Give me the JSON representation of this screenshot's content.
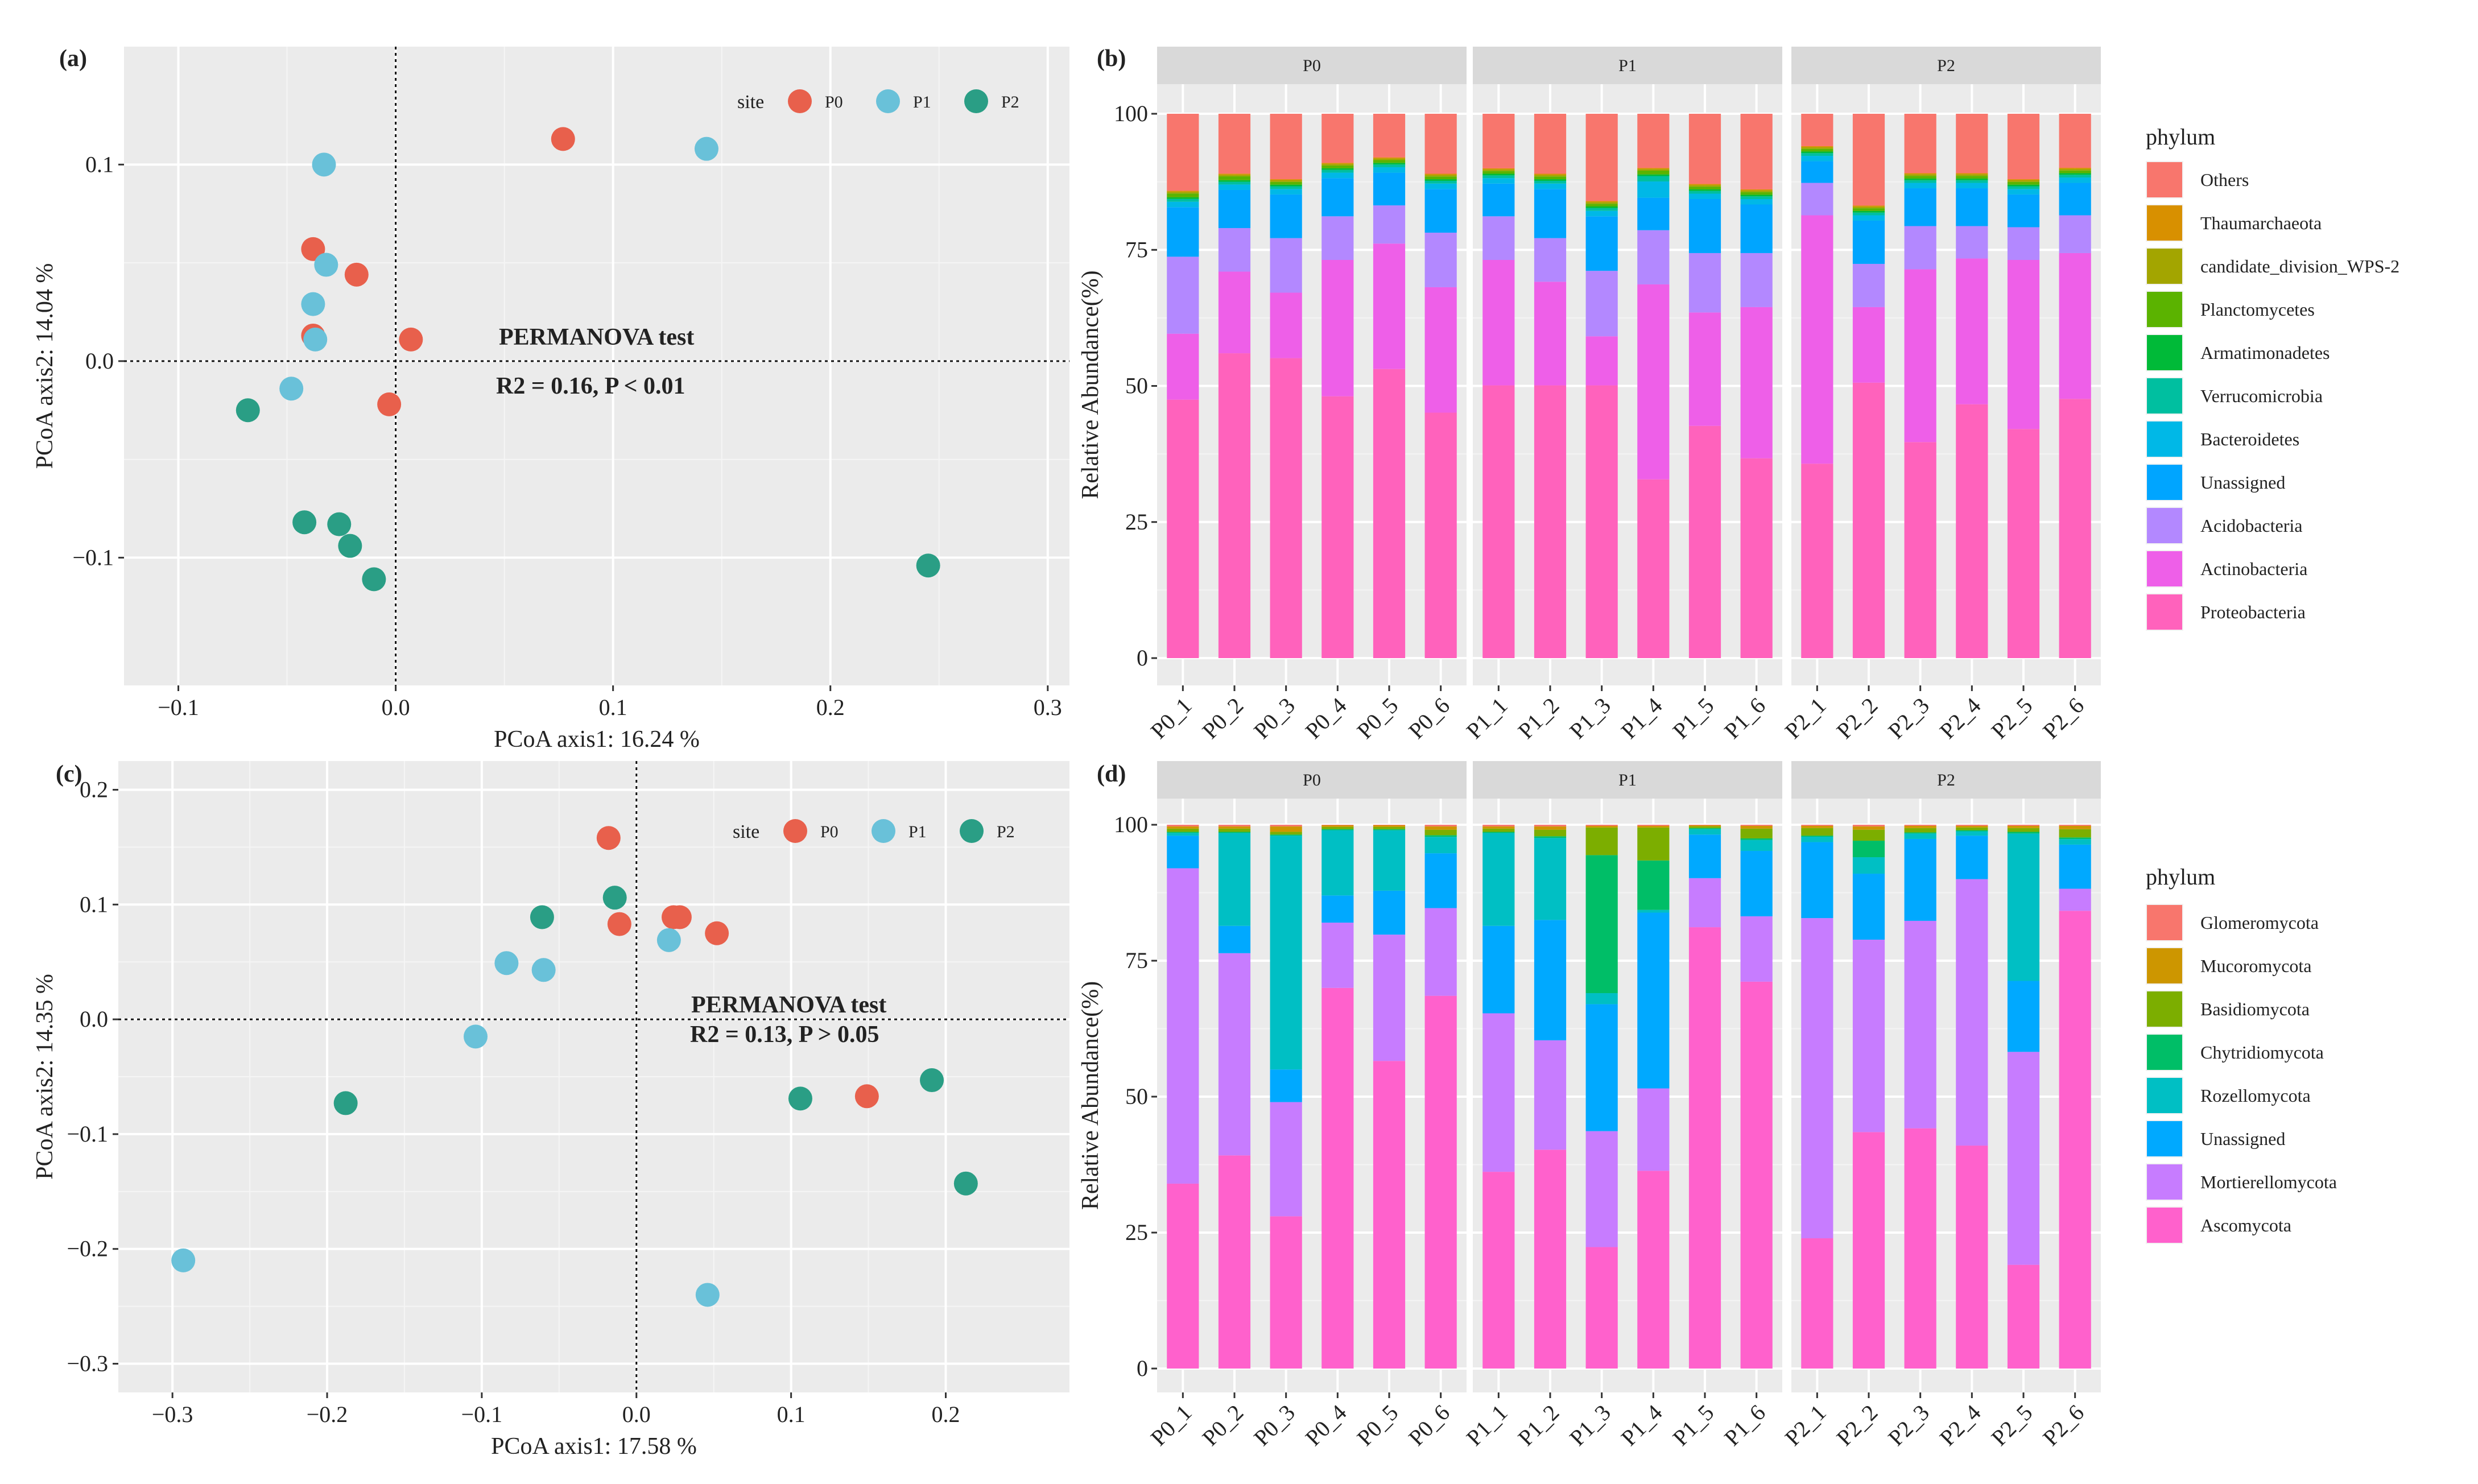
{
  "chart_data": [
    {
      "panel": "(a)",
      "type": "scatter",
      "xlabel": "PCoA axis1:  16.24 %",
      "ylabel": "PCoA axis2:  14.04 %",
      "xlim": [
        -0.125,
        0.31
      ],
      "ylim": [
        -0.165,
        0.16
      ],
      "xticks": [
        -0.1,
        0.0,
        0.1,
        0.2,
        0.3
      ],
      "xtick_labels": [
        "−0.1",
        "0.0",
        "0.1",
        "0.2",
        "0.3"
      ],
      "yticks": [
        -0.1,
        0.0,
        0.1
      ],
      "ytick_labels": [
        "−0.1",
        "0.0",
        "0.1"
      ],
      "legend_title": "site",
      "legend_labels": [
        "P0",
        "P1",
        "P2"
      ],
      "annotation_line1": "PERMANOVA  test",
      "annotation_line2": "R2 = 0.16,  P < 0.01",
      "series": [
        {
          "name": "P0",
          "color": "#E8604C",
          "points": [
            [
              0.077,
              0.113
            ],
            [
              -0.038,
              0.057
            ],
            [
              -0.018,
              0.044
            ],
            [
              -0.038,
              0.013
            ],
            [
              0.007,
              0.011
            ],
            [
              -0.003,
              -0.022
            ]
          ]
        },
        {
          "name": "P1",
          "color": "#69C1D9",
          "points": [
            [
              0.143,
              0.108
            ],
            [
              -0.033,
              0.1
            ],
            [
              -0.032,
              0.049
            ],
            [
              -0.038,
              0.029
            ],
            [
              -0.037,
              0.011
            ],
            [
              -0.048,
              -0.014
            ]
          ]
        },
        {
          "name": "P2",
          "color": "#2A9E85",
          "points": [
            [
              -0.068,
              -0.025
            ],
            [
              -0.042,
              -0.082
            ],
            [
              -0.026,
              -0.083
            ],
            [
              -0.021,
              -0.094
            ],
            [
              -0.01,
              -0.111
            ],
            [
              0.245,
              -0.104
            ]
          ]
        }
      ]
    },
    {
      "panel": "(b)",
      "type": "stacked-bar",
      "ylabel": "Relative Abundance(%)",
      "yticks": [
        "0",
        "25",
        "50",
        "75",
        "100"
      ],
      "legend_title": "phylum",
      "legend": [
        {
          "name": "Others",
          "color": "#F8766D"
        },
        {
          "name": "Thaumarchaeota",
          "color": "#D89000"
        },
        {
          "name": "candidate_division_WPS-2",
          "color": "#A3A500"
        },
        {
          "name": "Planctomycetes",
          "color": "#5BB300"
        },
        {
          "name": "Armatimonadetes",
          "color": "#00BA38"
        },
        {
          "name": "Verrucomicrobia",
          "color": "#00BFA0"
        },
        {
          "name": "Bacteroidetes",
          "color": "#00B8E7"
        },
        {
          "name": "Unassigned",
          "color": "#00A5FF"
        },
        {
          "name": "Acidobacteria",
          "color": "#B388FF"
        },
        {
          "name": "Actinobacteria",
          "color": "#EE5FE8"
        },
        {
          "name": "Proteobacteria",
          "color": "#FF62BC"
        }
      ],
      "stack_order": [
        "Proteobacteria",
        "Actinobacteria",
        "Acidobacteria",
        "Unassigned",
        "Bacteroidetes",
        "Verrucomicrobia",
        "Armatimonadetes",
        "Planctomycetes",
        "candidate_division_WPS-2",
        "Thaumarchaeota",
        "Others"
      ],
      "facets": [
        {
          "label": "P0",
          "bars": [
            {
              "name": "P0_1",
              "values": [
                47,
                12,
                14,
                9,
                1,
                0.5,
                0.3,
                0.7,
                0.3,
                0.2,
                14
              ]
            },
            {
              "name": "P0_2",
              "values": [
                56,
                15,
                8,
                7,
                1,
                0.5,
                0.3,
                0.7,
                0.3,
                0.2,
                11
              ]
            },
            {
              "name": "P0_3",
              "values": [
                55,
                12,
                10,
                8,
                1,
                0.5,
                0.3,
                0.5,
                0.3,
                0.2,
                12
              ]
            },
            {
              "name": "P0_4",
              "values": [
                48,
                25,
                8,
                7,
                1,
                0.5,
                0.3,
                0.5,
                0.3,
                0.2,
                9
              ]
            },
            {
              "name": "P0_5",
              "values": [
                53,
                23,
                7,
                6,
                1,
                0.5,
                0.3,
                0.5,
                0.3,
                0.2,
                8
              ]
            },
            {
              "name": "P0_6",
              "values": [
                45,
                23,
                10,
                8,
                1,
                0.5,
                0.3,
                0.5,
                0.3,
                0.2,
                11
              ]
            }
          ]
        },
        {
          "label": "P1",
          "bars": [
            {
              "name": "P1_1",
              "values": [
                50,
                23,
                8,
                6,
                1,
                0.5,
                0.3,
                0.5,
                0.3,
                0.2,
                10
              ]
            },
            {
              "name": "P1_2",
              "values": [
                50,
                19,
                8,
                9,
                1,
                0.5,
                0.3,
                0.5,
                0.3,
                0.2,
                11
              ]
            },
            {
              "name": "P1_3",
              "values": [
                50,
                9,
                12,
                10,
                1,
                0.5,
                0.3,
                0.5,
                0.3,
                0.2,
                16
              ]
            },
            {
              "name": "P1_4",
              "values": [
                33,
                36,
                10,
                6,
                3,
                1,
                0.3,
                0.7,
                0.3,
                0.2,
                10
              ]
            },
            {
              "name": "P1_5",
              "values": [
                43,
                21,
                11,
                10,
                1,
                0.5,
                0.3,
                0.5,
                0.3,
                0.2,
                13
              ]
            },
            {
              "name": "P1_6",
              "values": [
                37,
                28,
                10,
                9,
                1,
                0.5,
                0.3,
                0.5,
                0.3,
                0.2,
                14
              ]
            }
          ]
        },
        {
          "label": "P2",
          "bars": [
            {
              "name": "P2_1",
              "values": [
                36,
                46,
                6,
                4,
                1,
                0.5,
                0.3,
                0.5,
                0.3,
                0.2,
                6
              ]
            },
            {
              "name": "P2_2",
              "values": [
                51,
                14,
                8,
                8,
                1,
                0.5,
                0.3,
                0.5,
                0.3,
                0.2,
                17
              ]
            },
            {
              "name": "P2_3",
              "values": [
                40,
                32,
                8,
                7,
                1,
                0.5,
                0.3,
                0.5,
                0.3,
                0.2,
                11
              ]
            },
            {
              "name": "P2_4",
              "values": [
                47,
                27,
                6,
                7,
                1,
                0.5,
                0.3,
                0.5,
                0.3,
                0.2,
                11
              ]
            },
            {
              "name": "P2_5",
              "values": [
                42,
                31,
                6,
                6,
                1,
                0.5,
                0.3,
                0.5,
                0.3,
                0.2,
                12
              ]
            },
            {
              "name": "P2_6",
              "values": [
                48,
                27,
                7,
                6,
                1,
                0.5,
                0.3,
                0.5,
                0.3,
                0.2,
                10
              ]
            }
          ]
        }
      ]
    },
    {
      "panel": "(c)",
      "type": "scatter",
      "xlabel": "PCoA axis1:  17.58 %",
      "ylabel": "PCoA axis2:  14.35 %",
      "xlim": [
        -0.335,
        0.28
      ],
      "ylim": [
        -0.325,
        0.225
      ],
      "xticks": [
        -0.3,
        -0.2,
        -0.1,
        0.0,
        0.1,
        0.2
      ],
      "xtick_labels": [
        "−0.3",
        "−0.2",
        "−0.1",
        "0.0",
        "0.1",
        "0.2"
      ],
      "yticks": [
        -0.3,
        -0.2,
        -0.1,
        0.0,
        0.1,
        0.2
      ],
      "ytick_labels": [
        "−0.3",
        "−0.2",
        "−0.1",
        "0.0",
        "0.1",
        "0.2"
      ],
      "legend_title": "site",
      "legend_labels": [
        "P0",
        "P1",
        "P2"
      ],
      "annotation_line1": "PERMANOVA    test",
      "annotation_line2": "R2 = 0.13,  P > 0.05",
      "series": [
        {
          "name": "P0",
          "color": "#E8604C",
          "points": [
            [
              -0.018,
              0.158
            ],
            [
              -0.011,
              0.083
            ],
            [
              0.024,
              0.089
            ],
            [
              0.028,
              0.089
            ],
            [
              0.052,
              0.075
            ],
            [
              0.149,
              -0.067
            ]
          ]
        },
        {
          "name": "P1",
          "color": "#69C1D9",
          "points": [
            [
              0.021,
              0.069
            ],
            [
              -0.084,
              0.049
            ],
            [
              -0.06,
              0.043
            ],
            [
              -0.104,
              -0.015
            ],
            [
              0.046,
              -0.24
            ],
            [
              -0.293,
              -0.21
            ]
          ]
        },
        {
          "name": "P2",
          "color": "#2A9E85",
          "points": [
            [
              -0.014,
              0.106
            ],
            [
              -0.061,
              0.089
            ],
            [
              -0.188,
              -0.073
            ],
            [
              0.106,
              -0.069
            ],
            [
              0.191,
              -0.053
            ],
            [
              0.213,
              -0.143
            ]
          ]
        }
      ]
    },
    {
      "panel": "(d)",
      "type": "stacked-bar",
      "ylabel": "Relative Abundance(%)",
      "yticks": [
        "0",
        "25",
        "50",
        "75",
        "100"
      ],
      "legend_title": "phylum",
      "legend": [
        {
          "name": "Glomeromycota",
          "color": "#F8766D"
        },
        {
          "name": "Mucoromycota",
          "color": "#CD9600"
        },
        {
          "name": "Basidiomycota",
          "color": "#7CAE00"
        },
        {
          "name": "Chytridiomycota",
          "color": "#00BE67"
        },
        {
          "name": "Rozellomycota",
          "color": "#00BFC4"
        },
        {
          "name": "Unassigned",
          "color": "#00A9FF"
        },
        {
          "name": "Mortierellomycota",
          "color": "#C77CFF"
        },
        {
          "name": "Ascomycota",
          "color": "#FF61CC"
        }
      ],
      "stack_order": [
        "Ascomycota",
        "Mortierellomycota",
        "Unassigned",
        "Rozellomycota",
        "Chytridiomycota",
        "Basidiomycota",
        "Mucoromycota",
        "Glomeromycota"
      ],
      "facets": [
        {
          "label": "P0",
          "bars": [
            {
              "name": "P0_1",
              "values": [
                34,
                58,
                6,
                0.5,
                0.2,
                0.6,
                0.4,
                0.3
              ]
            },
            {
              "name": "P0_2",
              "values": [
                39,
                37,
                5,
                17,
                0.2,
                0.6,
                0.4,
                0.3
              ]
            },
            {
              "name": "P0_3",
              "values": [
                28,
                21,
                6,
                43,
                0.2,
                0.5,
                1.0,
                0.3
              ]
            },
            {
              "name": "P0_4",
              "values": [
                70,
                12,
                5,
                12,
                0.2,
                0.4,
                0.3,
                0.1
              ]
            },
            {
              "name": "P0_5",
              "values": [
                56,
                23,
                8,
                11,
                0.2,
                0.4,
                0.3,
                0.1
              ]
            },
            {
              "name": "P0_6",
              "values": [
                68,
                16,
                10,
                3,
                0.3,
                1.0,
                0.6,
                0.3
              ]
            }
          ]
        },
        {
          "label": "P1",
          "bars": [
            {
              "name": "P1_1",
              "values": [
                36,
                29,
                16,
                17,
                0.2,
                0.6,
                0.4,
                0.3
              ]
            },
            {
              "name": "P1_2",
              "values": [
                40,
                20,
                22,
                15,
                0.3,
                1.2,
                0.6,
                0.3
              ]
            },
            {
              "name": "P1_3",
              "values": [
                22,
                21,
                23,
                2,
                25,
                5,
                0.3,
                0.2
              ]
            },
            {
              "name": "P1_4",
              "values": [
                36,
                15,
                32,
                0.5,
                9,
                6,
                0.3,
                0.2
              ]
            },
            {
              "name": "P1_5",
              "values": [
                81,
                9,
                8,
                1,
                0.2,
                0.3,
                0.2,
                0.1
              ]
            },
            {
              "name": "P1_6",
              "values": [
                71,
                12,
                12,
                2,
                0.3,
                1.8,
                0.5,
                0.2
              ]
            }
          ]
        },
        {
          "label": "P2",
          "bars": [
            {
              "name": "P2_1",
              "values": [
                24,
                59,
                14,
                1,
                0.2,
                1.4,
                0.4,
                0.2
              ]
            },
            {
              "name": "P2_2",
              "values": [
                43,
                35,
                12,
                3,
                3,
                2,
                0.6,
                0.3
              ]
            },
            {
              "name": "P2_3",
              "values": [
                44,
                38,
                15,
                1,
                0.2,
                0.8,
                0.4,
                0.2
              ]
            },
            {
              "name": "P2_4",
              "values": [
                41,
                49,
                8,
                0.8,
                0.2,
                0.5,
                0.3,
                0.2
              ]
            },
            {
              "name": "P2_5",
              "values": [
                19,
                39,
                13,
                27,
                0.3,
                0.7,
                0.4,
                0.2
              ]
            },
            {
              "name": "P2_6",
              "values": [
                83,
                4,
                8,
                1,
                0.3,
                1.5,
                0.6,
                0.2
              ]
            }
          ]
        }
      ]
    }
  ]
}
